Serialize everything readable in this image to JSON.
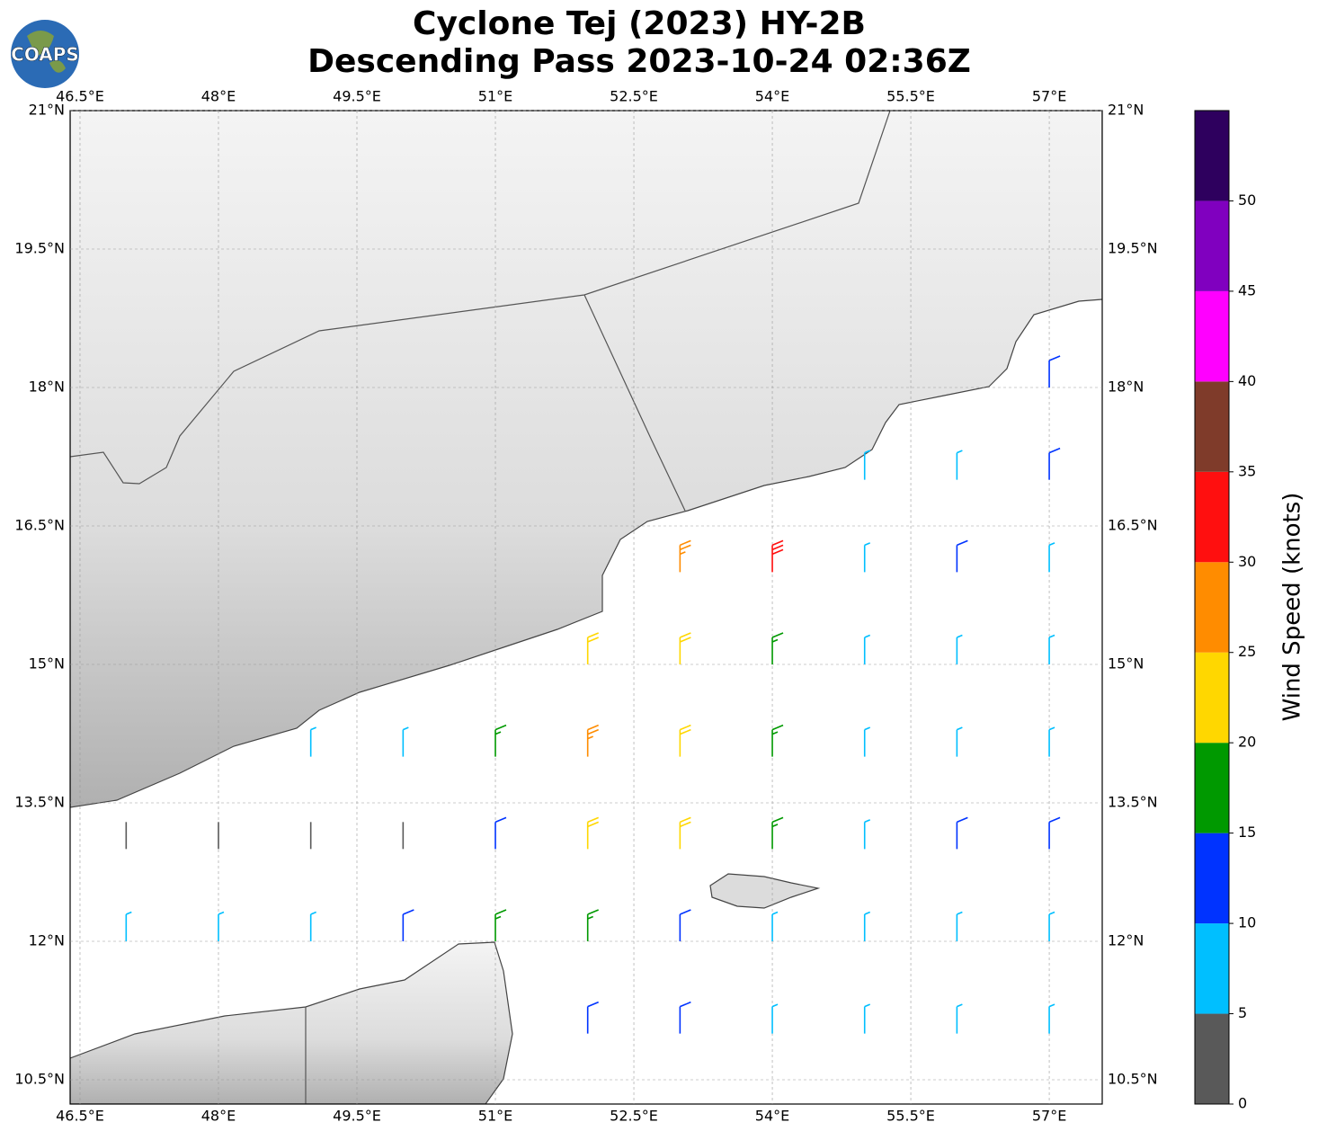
{
  "chart_data": {
    "type": "barbmap",
    "title": "Cyclone Tej (2023) HY-2B",
    "subtitle": "Descending Pass 2023-10-24 02:36Z",
    "logo": "COAPS",
    "xlim": [
      46.393,
      57.574
    ],
    "ylim": [
      10.237,
      21
    ],
    "xticks": [
      {
        "value": 46.5,
        "label": "46.5°E"
      },
      {
        "value": 48,
        "label": "48°E"
      },
      {
        "value": 49.5,
        "label": "49.5°E"
      },
      {
        "value": 51,
        "label": "51°E"
      },
      {
        "value": 52.5,
        "label": "52.5°E"
      },
      {
        "value": 54,
        "label": "54°E"
      },
      {
        "value": 55.5,
        "label": "55.5°E"
      },
      {
        "value": 57,
        "label": "57°E"
      }
    ],
    "yticks": [
      {
        "value": 10.5,
        "label": "10.5°N"
      },
      {
        "value": 12,
        "label": "12°N"
      },
      {
        "value": 13.5,
        "label": "13.5°N"
      },
      {
        "value": 15,
        "label": "15°N"
      },
      {
        "value": 16.5,
        "label": "16.5°N"
      },
      {
        "value": 18,
        "label": "18°N"
      },
      {
        "value": 19.5,
        "label": "19.5°N"
      },
      {
        "value": 21,
        "label": "21°N"
      }
    ],
    "grid": true,
    "wind": {
      "lons": [
        47,
        48,
        49,
        50,
        51,
        52,
        53,
        54,
        55,
        56,
        57
      ],
      "lats": [
        11,
        12,
        13,
        14,
        15,
        16,
        17,
        18
      ],
      "speed": [
        [
          null,
          null,
          null,
          null,
          null,
          12,
          12,
          9,
          8,
          8,
          8
        ],
        [
          8,
          8,
          7,
          12,
          17,
          16,
          13,
          9,
          9,
          9,
          9
        ],
        [
          3,
          3,
          4,
          3,
          13,
          22,
          23,
          18,
          8,
          12,
          13
        ],
        [
          null,
          null,
          8,
          9,
          17,
          27,
          22,
          18,
          9,
          9,
          9
        ],
        [
          null,
          null,
          null,
          null,
          null,
          22,
          24,
          17,
          9,
          8,
          8
        ],
        [
          null,
          null,
          null,
          null,
          null,
          null,
          27,
          30,
          9,
          11,
          9
        ],
        [
          null,
          null,
          null,
          null,
          null,
          null,
          null,
          null,
          8,
          9,
          12
        ],
        [
          null,
          null,
          null,
          null,
          null,
          null,
          null,
          null,
          null,
          null,
          12
        ]
      ]
    },
    "colorbar": {
      "label": "Wind Speed (knots)",
      "lim": [
        0,
        55
      ],
      "ticks": [
        0,
        5,
        10,
        15,
        20,
        25,
        30,
        35,
        40,
        45,
        50
      ],
      "bounds": [
        0,
        5,
        10,
        15,
        20,
        25,
        30,
        35,
        40,
        45,
        50,
        55
      ],
      "colors": [
        "#595959",
        "#00bfff",
        "#0033ff",
        "#009900",
        "#ffd700",
        "#ff8c00",
        "#ff0f0f",
        "#7f3b2a",
        "#ff00ff",
        "#8000bf",
        "#2e005e"
      ]
    }
  }
}
